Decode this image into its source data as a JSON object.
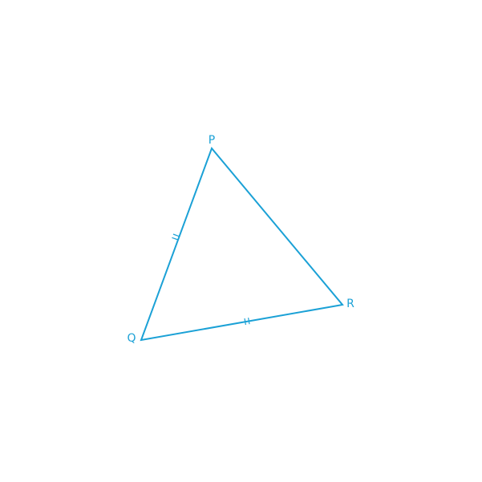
{
  "diagram": {
    "stroke_color": "#1ba1d6",
    "vertices": {
      "P": "P",
      "Q": "Q",
      "R": "R"
    },
    "equal_sides": [
      "PQ",
      "QR"
    ],
    "tick_marks_per_equal_side": 2
  }
}
